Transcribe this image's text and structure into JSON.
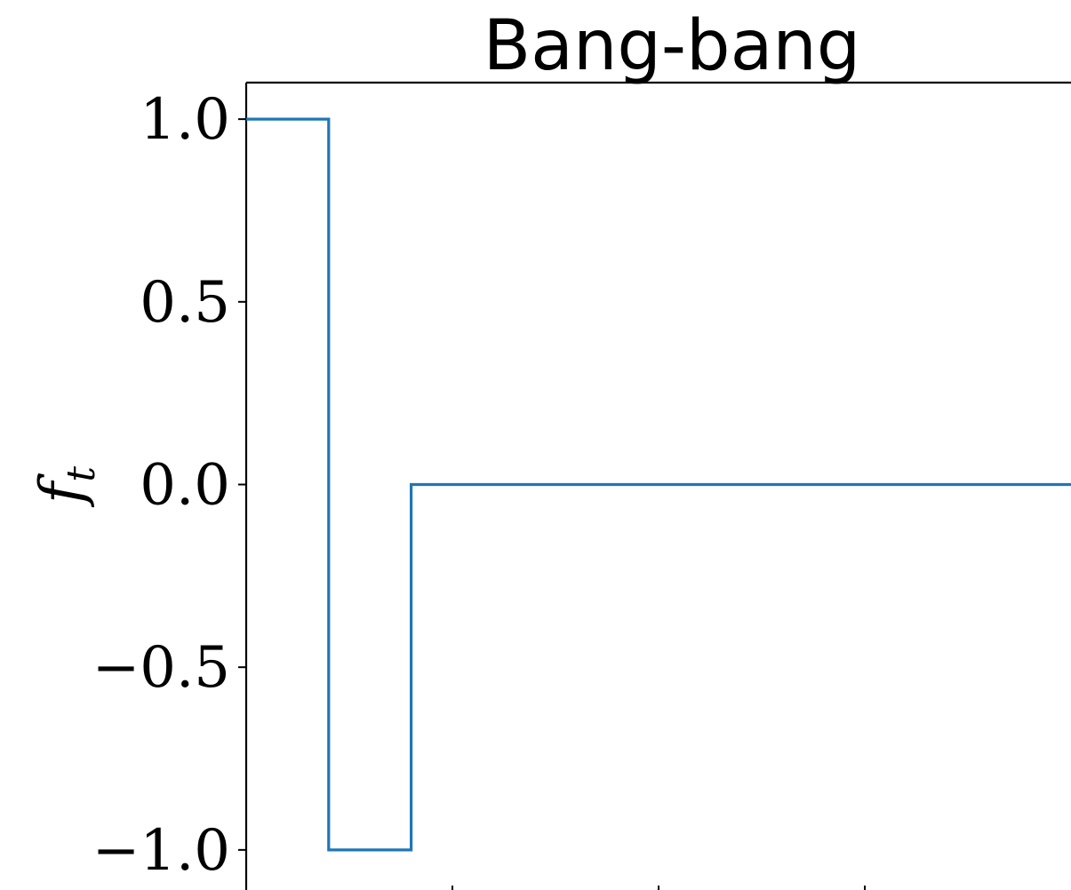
{
  "chart_data": {
    "type": "line",
    "step": true,
    "title": "Bang-bang",
    "xlabel": "",
    "ylabel": "f_t",
    "ylim": [
      -1.1,
      1.1
    ],
    "yticks": [
      1.0,
      0.5,
      0.0,
      -0.5,
      -1.0
    ],
    "ytick_labels": [
      "1.0",
      "0.5",
      "0.0",
      "−0.5",
      "−1.0"
    ],
    "xlim": [
      0,
      10
    ],
    "xtick_values": [
      2.5,
      5.0,
      7.5
    ],
    "grid": false,
    "series": [
      {
        "x": [
          0,
          1,
          1,
          2,
          2,
          10
        ],
        "y": [
          1.0,
          1.0,
          -1.0,
          -1.0,
          0.0,
          0.0
        ],
        "color": "#1f77b4"
      }
    ]
  }
}
